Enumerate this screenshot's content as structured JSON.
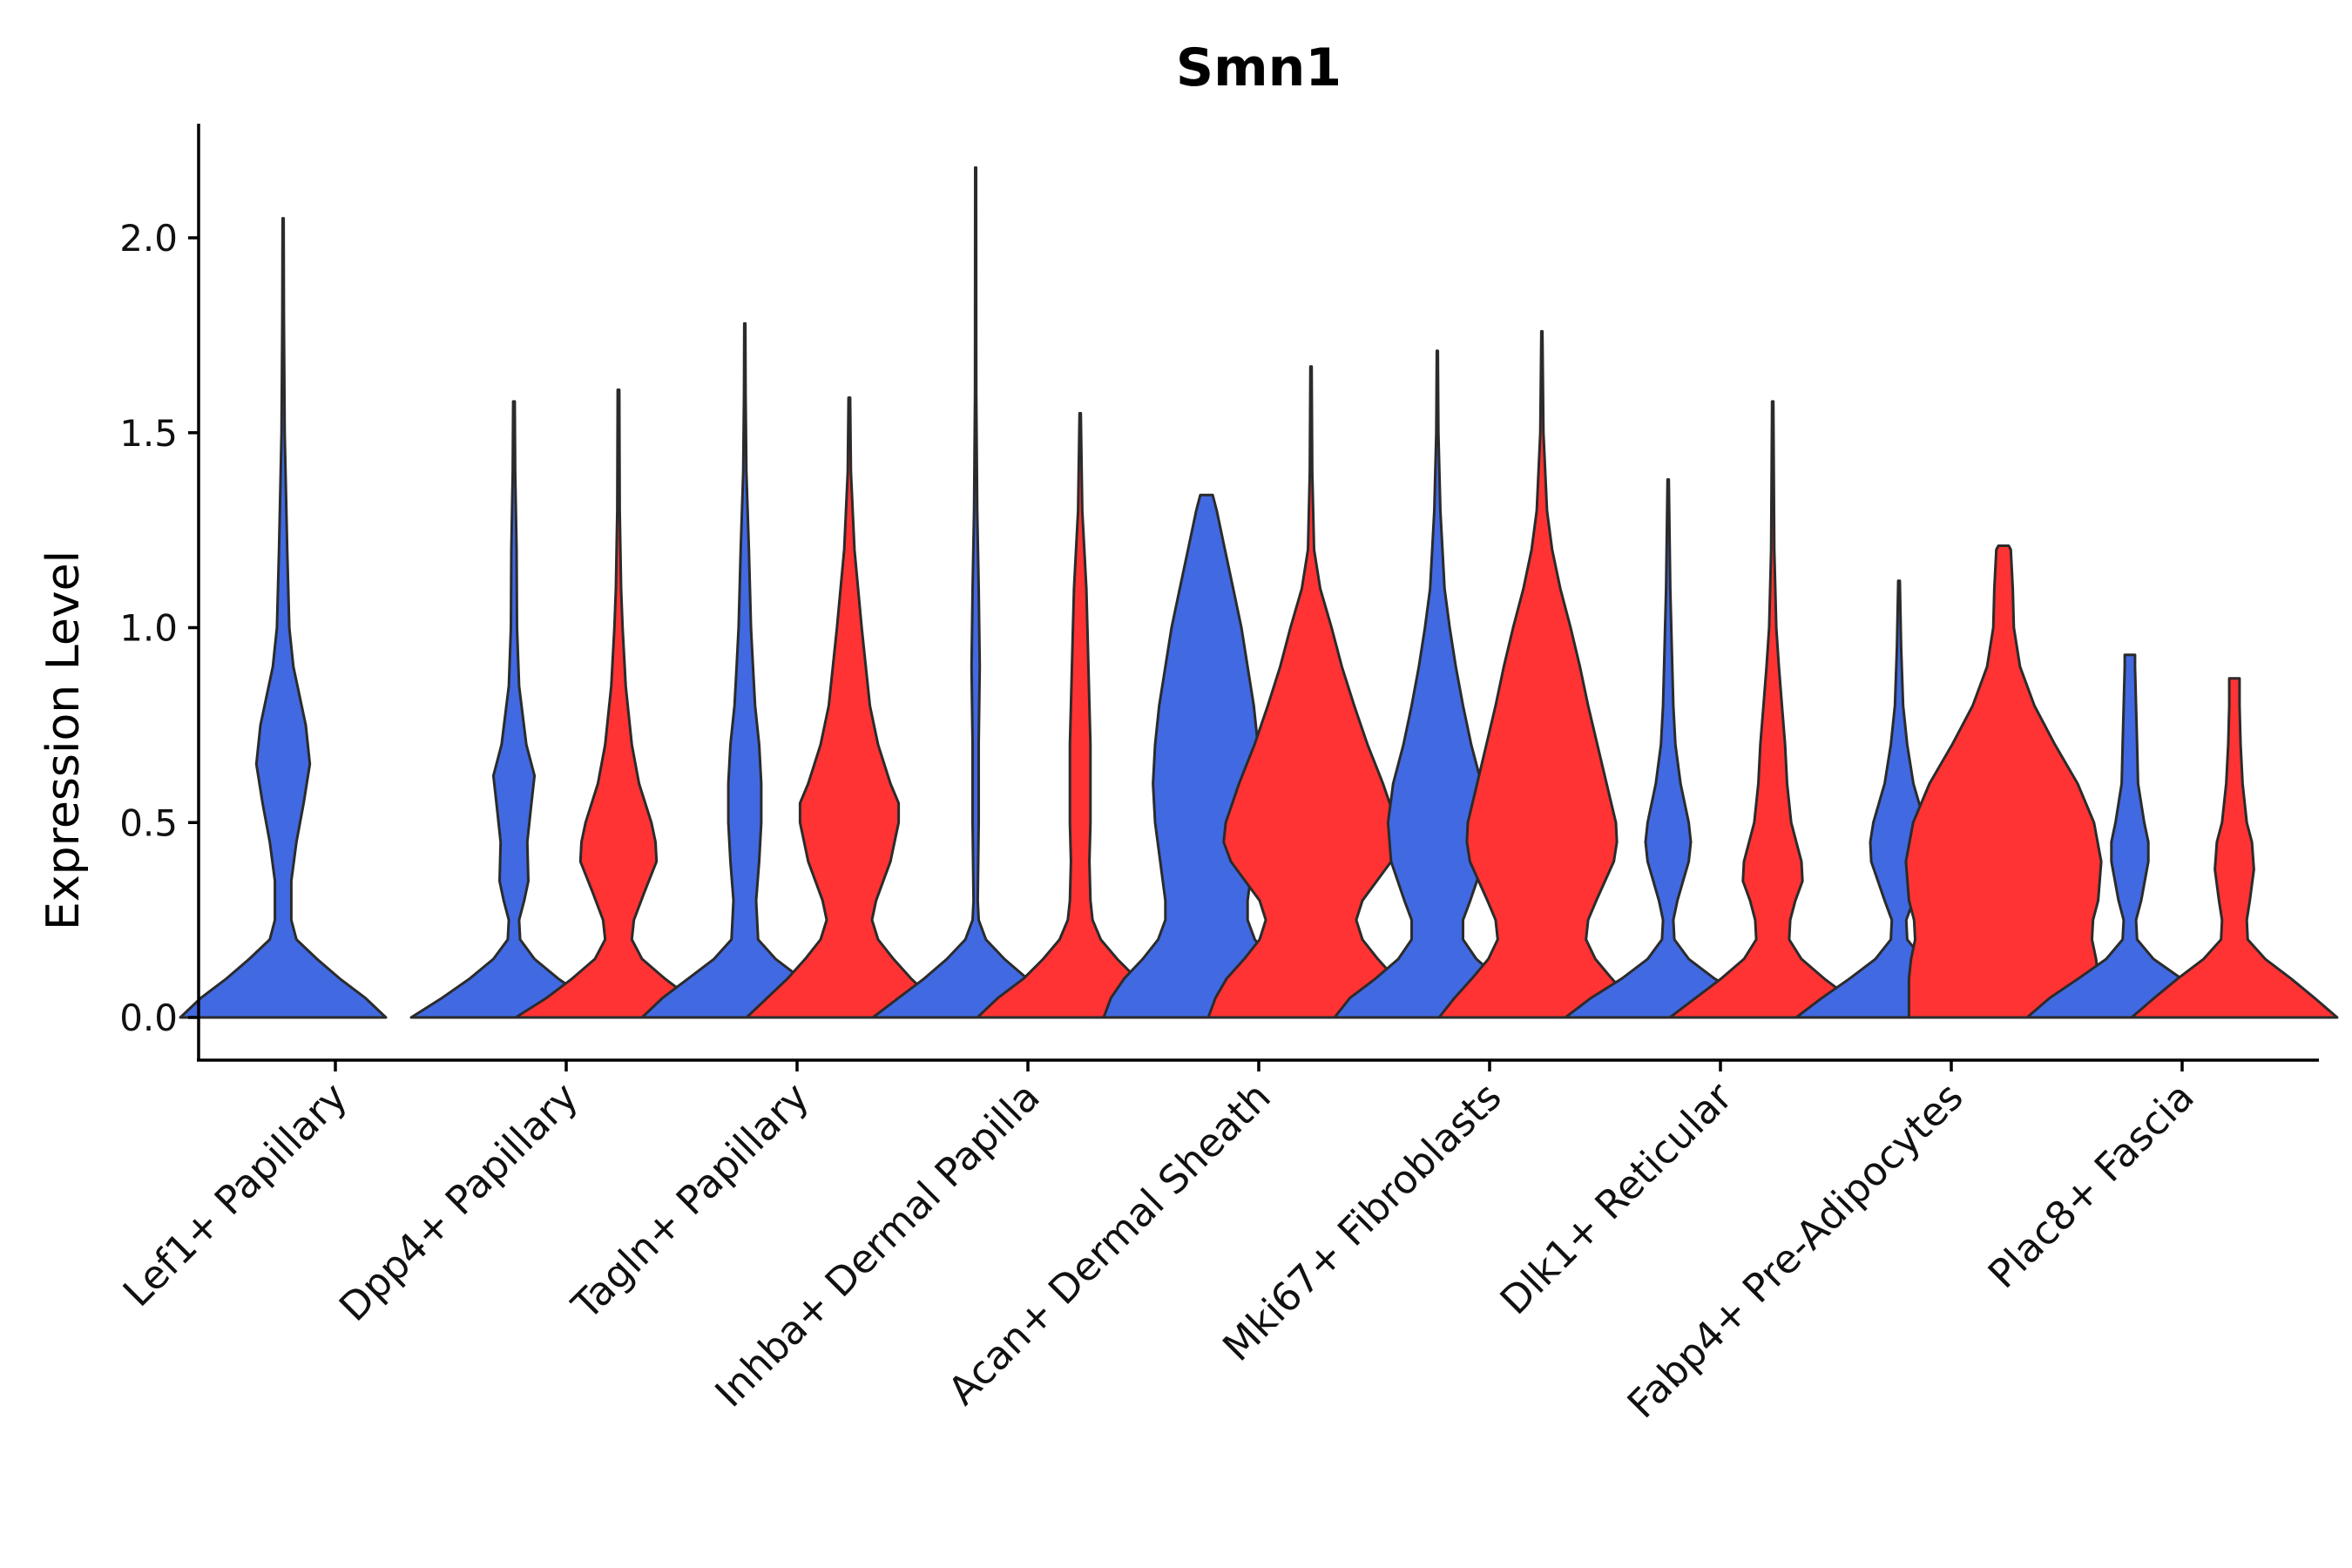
{
  "chart_data": {
    "type": "violin",
    "title": "Smn1",
    "xlabel": "",
    "ylabel": "Expression Level",
    "ylim": [
      -0.11,
      2.3
    ],
    "yticks": [
      "0.0",
      "0.5",
      "1.0",
      "1.5",
      "2.0"
    ],
    "ytick_values": [
      0,
      0.5,
      1.0,
      1.5,
      2.0
    ],
    "grid": false,
    "legend": "none",
    "series_colors": {
      "blue": "#4169E1",
      "red": "#FF3333"
    },
    "categories": [
      "Lef1+ Papillary",
      "Dpp4+ Papillary",
      "Tagln+ Papillary",
      "Inhba+ Dermal Papilla",
      "Acan+ Dermal Sheath",
      "Mki67+ Fibroblasts",
      "Dlk1+ Reticular",
      "Fabp4+ Pre-Adipocytes",
      "Plac8+ Fascia"
    ],
    "violins": [
      {
        "category": "Lef1+ Papillary",
        "group": "blue",
        "max": 2.05,
        "profile": [
          [
            0,
            1.0
          ],
          [
            0.05,
            0.8
          ],
          [
            0.1,
            0.55
          ],
          [
            0.15,
            0.33
          ],
          [
            0.2,
            0.13
          ],
          [
            0.25,
            0.08
          ],
          [
            0.35,
            0.08
          ],
          [
            0.45,
            0.13
          ],
          [
            0.55,
            0.2
          ],
          [
            0.65,
            0.26
          ],
          [
            0.75,
            0.22
          ],
          [
            0.9,
            0.1
          ],
          [
            1.0,
            0.06
          ],
          [
            1.2,
            0.04
          ],
          [
            1.5,
            0.015
          ],
          [
            1.8,
            0.008
          ],
          [
            2.05,
            0.005
          ]
        ]
      },
      {
        "category": "Dpp4+ Papillary",
        "group": "blue",
        "max": 1.58,
        "profile": [
          [
            0,
            1.0
          ],
          [
            0.05,
            0.7
          ],
          [
            0.1,
            0.43
          ],
          [
            0.15,
            0.2
          ],
          [
            0.2,
            0.06
          ],
          [
            0.25,
            0.05
          ],
          [
            0.3,
            0.1
          ],
          [
            0.35,
            0.14
          ],
          [
            0.45,
            0.13
          ],
          [
            0.55,
            0.17
          ],
          [
            0.62,
            0.2
          ],
          [
            0.7,
            0.12
          ],
          [
            0.85,
            0.05
          ],
          [
            1.0,
            0.03
          ],
          [
            1.2,
            0.025
          ],
          [
            1.4,
            0.012
          ],
          [
            1.58,
            0.008
          ]
        ]
      },
      {
        "category": "Dpp4+ Papillary",
        "group": "red",
        "max": 1.61,
        "profile": [
          [
            0,
            1.0
          ],
          [
            0.05,
            0.7
          ],
          [
            0.1,
            0.45
          ],
          [
            0.15,
            0.23
          ],
          [
            0.2,
            0.13
          ],
          [
            0.25,
            0.15
          ],
          [
            0.32,
            0.25
          ],
          [
            0.4,
            0.37
          ],
          [
            0.45,
            0.36
          ],
          [
            0.5,
            0.32
          ],
          [
            0.6,
            0.2
          ],
          [
            0.7,
            0.13
          ],
          [
            0.85,
            0.07
          ],
          [
            1.0,
            0.04
          ],
          [
            1.1,
            0.025
          ],
          [
            1.3,
            0.012
          ],
          [
            1.61,
            0.008
          ]
        ]
      },
      {
        "category": "Tagln+ Papillary",
        "group": "blue",
        "max": 1.78,
        "profile": [
          [
            0,
            1.0
          ],
          [
            0.05,
            0.8
          ],
          [
            0.1,
            0.55
          ],
          [
            0.15,
            0.3
          ],
          [
            0.2,
            0.13
          ],
          [
            0.3,
            0.11
          ],
          [
            0.4,
            0.14
          ],
          [
            0.5,
            0.16
          ],
          [
            0.6,
            0.16
          ],
          [
            0.7,
            0.14
          ],
          [
            0.8,
            0.1
          ],
          [
            0.9,
            0.08
          ],
          [
            1.0,
            0.06
          ],
          [
            1.2,
            0.04
          ],
          [
            1.4,
            0.015
          ],
          [
            1.6,
            0.008
          ],
          [
            1.78,
            0.005
          ]
        ]
      },
      {
        "category": "Tagln+ Papillary",
        "group": "red",
        "max": 1.59,
        "profile": [
          [
            0,
            1.0
          ],
          [
            0.05,
            0.8
          ],
          [
            0.1,
            0.6
          ],
          [
            0.15,
            0.43
          ],
          [
            0.2,
            0.28
          ],
          [
            0.25,
            0.22
          ],
          [
            0.3,
            0.26
          ],
          [
            0.4,
            0.4
          ],
          [
            0.5,
            0.48
          ],
          [
            0.55,
            0.48
          ],
          [
            0.6,
            0.4
          ],
          [
            0.7,
            0.28
          ],
          [
            0.8,
            0.2
          ],
          [
            1.0,
            0.12
          ],
          [
            1.2,
            0.05
          ],
          [
            1.4,
            0.015
          ],
          [
            1.59,
            0.008
          ]
        ]
      },
      {
        "category": "Inhba+ Dermal Papilla",
        "group": "blue",
        "max": 2.18,
        "profile": [
          [
            0,
            1.0
          ],
          [
            0.05,
            0.75
          ],
          [
            0.1,
            0.5
          ],
          [
            0.15,
            0.28
          ],
          [
            0.2,
            0.1
          ],
          [
            0.25,
            0.03
          ],
          [
            0.3,
            0.02
          ],
          [
            0.5,
            0.03
          ],
          [
            0.7,
            0.03
          ],
          [
            0.9,
            0.04
          ],
          [
            1.0,
            0.035
          ],
          [
            1.1,
            0.03
          ],
          [
            1.3,
            0.015
          ],
          [
            1.6,
            0.006
          ],
          [
            1.9,
            0.005
          ],
          [
            2.18,
            0.004
          ]
        ]
      },
      {
        "category": "Inhba+ Dermal Papilla",
        "group": "red",
        "max": 1.55,
        "profile": [
          [
            0,
            1.0
          ],
          [
            0.05,
            0.8
          ],
          [
            0.1,
            0.55
          ],
          [
            0.15,
            0.36
          ],
          [
            0.2,
            0.2
          ],
          [
            0.25,
            0.12
          ],
          [
            0.3,
            0.1
          ],
          [
            0.4,
            0.09
          ],
          [
            0.5,
            0.1
          ],
          [
            0.6,
            0.1
          ],
          [
            0.7,
            0.1
          ],
          [
            0.8,
            0.09
          ],
          [
            1.0,
            0.07
          ],
          [
            1.1,
            0.06
          ],
          [
            1.3,
            0.02
          ],
          [
            1.55,
            0.006
          ]
        ]
      },
      {
        "category": "Acan+ Dermal Sheath",
        "group": "blue",
        "max": 1.34,
        "profile": [
          [
            0,
            1.0
          ],
          [
            0.05,
            0.93
          ],
          [
            0.1,
            0.8
          ],
          [
            0.15,
            0.62
          ],
          [
            0.2,
            0.47
          ],
          [
            0.25,
            0.4
          ],
          [
            0.3,
            0.4
          ],
          [
            0.4,
            0.45
          ],
          [
            0.5,
            0.5
          ],
          [
            0.6,
            0.52
          ],
          [
            0.7,
            0.5
          ],
          [
            0.8,
            0.46
          ],
          [
            0.9,
            0.4
          ],
          [
            1.0,
            0.34
          ],
          [
            1.1,
            0.26
          ],
          [
            1.2,
            0.18
          ],
          [
            1.3,
            0.1
          ],
          [
            1.34,
            0.06
          ]
        ]
      },
      {
        "category": "Acan+ Dermal Sheath",
        "group": "red",
        "max": 1.67,
        "profile": [
          [
            0,
            1.0
          ],
          [
            0.05,
            0.93
          ],
          [
            0.1,
            0.82
          ],
          [
            0.15,
            0.65
          ],
          [
            0.2,
            0.5
          ],
          [
            0.25,
            0.44
          ],
          [
            0.3,
            0.5
          ],
          [
            0.4,
            0.78
          ],
          [
            0.45,
            0.85
          ],
          [
            0.5,
            0.83
          ],
          [
            0.6,
            0.7
          ],
          [
            0.7,
            0.55
          ],
          [
            0.8,
            0.42
          ],
          [
            0.9,
            0.3
          ],
          [
            1.0,
            0.2
          ],
          [
            1.1,
            0.09
          ],
          [
            1.2,
            0.03
          ],
          [
            1.4,
            0.012
          ],
          [
            1.67,
            0.006
          ]
        ]
      },
      {
        "category": "Mki67+ Fibroblasts",
        "group": "blue",
        "max": 1.71,
        "profile": [
          [
            0,
            1.0
          ],
          [
            0.05,
            0.85
          ],
          [
            0.1,
            0.6
          ],
          [
            0.15,
            0.38
          ],
          [
            0.2,
            0.25
          ],
          [
            0.25,
            0.25
          ],
          [
            0.3,
            0.32
          ],
          [
            0.4,
            0.45
          ],
          [
            0.5,
            0.48
          ],
          [
            0.6,
            0.43
          ],
          [
            0.7,
            0.33
          ],
          [
            0.8,
            0.25
          ],
          [
            0.9,
            0.18
          ],
          [
            1.0,
            0.12
          ],
          [
            1.1,
            0.07
          ],
          [
            1.3,
            0.03
          ],
          [
            1.5,
            0.01
          ],
          [
            1.71,
            0.005
          ]
        ]
      },
      {
        "category": "Mki67+ Fibroblasts",
        "group": "red",
        "max": 1.76,
        "profile": [
          [
            0,
            1.0
          ],
          [
            0.05,
            0.85
          ],
          [
            0.1,
            0.68
          ],
          [
            0.15,
            0.52
          ],
          [
            0.2,
            0.43
          ],
          [
            0.25,
            0.45
          ],
          [
            0.3,
            0.53
          ],
          [
            0.4,
            0.7
          ],
          [
            0.45,
            0.73
          ],
          [
            0.5,
            0.72
          ],
          [
            0.6,
            0.63
          ],
          [
            0.7,
            0.54
          ],
          [
            0.8,
            0.45
          ],
          [
            0.9,
            0.37
          ],
          [
            1.0,
            0.28
          ],
          [
            1.1,
            0.18
          ],
          [
            1.2,
            0.1
          ],
          [
            1.3,
            0.05
          ],
          [
            1.5,
            0.015
          ],
          [
            1.76,
            0.005
          ]
        ]
      },
      {
        "category": "Dlk1+ Reticular",
        "group": "blue",
        "max": 1.38,
        "profile": [
          [
            0,
            1.0
          ],
          [
            0.05,
            0.75
          ],
          [
            0.1,
            0.45
          ],
          [
            0.15,
            0.2
          ],
          [
            0.2,
            0.06
          ],
          [
            0.25,
            0.05
          ],
          [
            0.3,
            0.09
          ],
          [
            0.4,
            0.2
          ],
          [
            0.45,
            0.22
          ],
          [
            0.5,
            0.2
          ],
          [
            0.6,
            0.12
          ],
          [
            0.7,
            0.07
          ],
          [
            0.8,
            0.05
          ],
          [
            0.9,
            0.04
          ],
          [
            1.1,
            0.02
          ],
          [
            1.38,
            0.006
          ]
        ]
      },
      {
        "category": "Dlk1+ Reticular",
        "group": "red",
        "max": 1.58,
        "profile": [
          [
            0,
            1.0
          ],
          [
            0.05,
            0.75
          ],
          [
            0.1,
            0.5
          ],
          [
            0.15,
            0.28
          ],
          [
            0.2,
            0.16
          ],
          [
            0.25,
            0.17
          ],
          [
            0.3,
            0.22
          ],
          [
            0.35,
            0.29
          ],
          [
            0.4,
            0.28
          ],
          [
            0.5,
            0.18
          ],
          [
            0.6,
            0.14
          ],
          [
            0.7,
            0.12
          ],
          [
            0.8,
            0.09
          ],
          [
            0.9,
            0.06
          ],
          [
            1.0,
            0.035
          ],
          [
            1.2,
            0.015
          ],
          [
            1.58,
            0.006
          ]
        ]
      },
      {
        "category": "Fabp4+ Pre-Adipocytes",
        "group": "blue",
        "max": 1.12,
        "profile": [
          [
            0,
            1.0
          ],
          [
            0.05,
            0.75
          ],
          [
            0.1,
            0.48
          ],
          [
            0.15,
            0.23
          ],
          [
            0.2,
            0.08
          ],
          [
            0.25,
            0.07
          ],
          [
            0.3,
            0.14
          ],
          [
            0.4,
            0.27
          ],
          [
            0.45,
            0.28
          ],
          [
            0.5,
            0.25
          ],
          [
            0.6,
            0.14
          ],
          [
            0.7,
            0.08
          ],
          [
            0.8,
            0.04
          ],
          [
            0.95,
            0.02
          ],
          [
            1.12,
            0.008
          ]
        ]
      },
      {
        "category": "Fabp4+ Pre-Adipocytes",
        "group": "red",
        "max": 1.21,
        "profile": [
          [
            0,
            0.92
          ],
          [
            0.05,
            0.92
          ],
          [
            0.1,
            0.92
          ],
          [
            0.15,
            0.9
          ],
          [
            0.2,
            0.86
          ],
          [
            0.25,
            0.87
          ],
          [
            0.3,
            0.92
          ],
          [
            0.4,
            0.95
          ],
          [
            0.5,
            0.88
          ],
          [
            0.6,
            0.72
          ],
          [
            0.7,
            0.5
          ],
          [
            0.8,
            0.3
          ],
          [
            0.9,
            0.16
          ],
          [
            1.0,
            0.1
          ],
          [
            1.1,
            0.09
          ],
          [
            1.2,
            0.07
          ],
          [
            1.21,
            0.05
          ]
        ]
      },
      {
        "category": "Plac8+ Fascia",
        "group": "blue",
        "max": 0.93,
        "profile": [
          [
            0,
            1.0
          ],
          [
            0.05,
            0.78
          ],
          [
            0.1,
            0.5
          ],
          [
            0.15,
            0.23
          ],
          [
            0.2,
            0.07
          ],
          [
            0.25,
            0.06
          ],
          [
            0.3,
            0.11
          ],
          [
            0.4,
            0.18
          ],
          [
            0.45,
            0.18
          ],
          [
            0.5,
            0.14
          ],
          [
            0.6,
            0.08
          ],
          [
            0.7,
            0.07
          ],
          [
            0.8,
            0.06
          ],
          [
            0.9,
            0.05
          ],
          [
            0.93,
            0.05
          ]
        ]
      },
      {
        "category": "Plac8+ Fascia",
        "group": "red",
        "max": 0.87,
        "profile": [
          [
            0,
            1.0
          ],
          [
            0.05,
            0.78
          ],
          [
            0.1,
            0.55
          ],
          [
            0.15,
            0.3
          ],
          [
            0.2,
            0.13
          ],
          [
            0.25,
            0.12
          ],
          [
            0.3,
            0.15
          ],
          [
            0.38,
            0.19
          ],
          [
            0.45,
            0.17
          ],
          [
            0.5,
            0.12
          ],
          [
            0.6,
            0.08
          ],
          [
            0.7,
            0.06
          ],
          [
            0.8,
            0.05
          ],
          [
            0.87,
            0.05
          ]
        ]
      }
    ]
  }
}
